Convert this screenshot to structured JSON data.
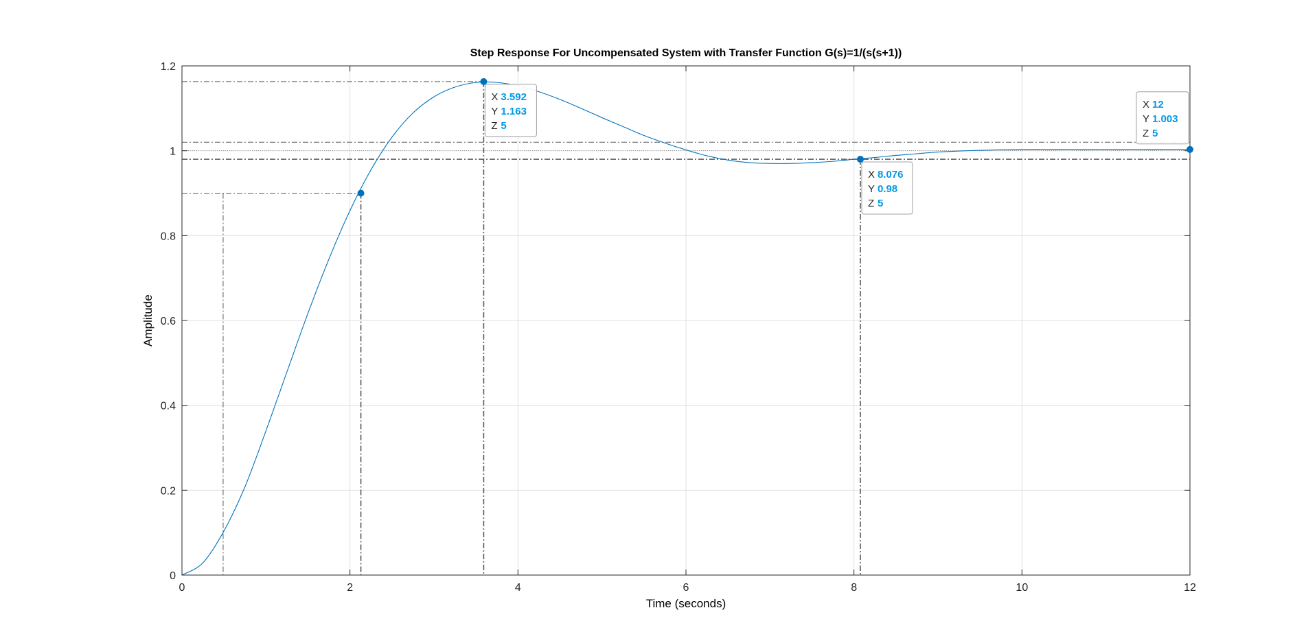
{
  "chart_data": {
    "type": "line",
    "title": "Step Response For Uncompensated System with Transfer Function G(s)=1/(s(s+1))",
    "xlabel": "Time (seconds)",
    "ylabel": "Amplitude",
    "xlim": [
      0,
      12
    ],
    "ylim": [
      0,
      1.2
    ],
    "xticks": [
      0,
      2,
      4,
      6,
      8,
      10,
      12
    ],
    "xtick_labels": [
      "0",
      "2",
      "4",
      "6",
      "8",
      "10",
      "12"
    ],
    "yticks": [
      0,
      0.2,
      0.4,
      0.6,
      0.8,
      1,
      1.2
    ],
    "ytick_labels": [
      "0",
      "0.2",
      "0.4",
      "0.6",
      "0.8",
      "1",
      "1.2"
    ],
    "grid": true,
    "series": [
      {
        "color": "#0072bd",
        "x": [
          0,
          0.25,
          0.5,
          0.75,
          1,
          1.25,
          1.5,
          1.75,
          2,
          2.25,
          2.5,
          2.75,
          3,
          3.25,
          3.5,
          3.75,
          4,
          4.25,
          4.5,
          4.75,
          5,
          5.25,
          5.5,
          5.75,
          6,
          6.25,
          6.5,
          6.75,
          7,
          7.25,
          7.5,
          7.75,
          8,
          8.25,
          8.5,
          8.75,
          9,
          9.5,
          10,
          10.5,
          11,
          11.5,
          12
        ],
        "y": [
          0,
          0.029,
          0.104,
          0.208,
          0.34,
          0.479,
          0.617,
          0.745,
          0.859,
          0.955,
          1.032,
          1.089,
          1.127,
          1.15,
          1.161,
          1.161,
          1.153,
          1.139,
          1.121,
          1.1,
          1.078,
          1.057,
          1.036,
          1.018,
          1.002,
          0.988,
          0.978,
          0.972,
          0.97,
          0.97,
          0.972,
          0.975,
          0.98,
          0.984,
          0.989,
          0.993,
          0.997,
          1.001,
          1.003,
          1.003,
          1.003,
          1.003,
          1.003
        ]
      }
    ],
    "settling_band": [
      0.98,
      1.02
    ],
    "rise_markers_y": [
      0.1,
      0.9
    ],
    "rise_markers_x": [
      0.49,
      2.13
    ],
    "peak": {
      "x": 3.592,
      "y": 1.163
    },
    "settling": {
      "x": 8.076,
      "y": 0.98
    },
    "steady_state": {
      "x": 12,
      "y": 1.003
    },
    "marker_points": [
      {
        "x": 2.13,
        "y": 0.9
      },
      {
        "x": 3.592,
        "y": 1.163
      },
      {
        "x": 8.076,
        "y": 0.98
      },
      {
        "x": 12,
        "y": 1.003
      }
    ],
    "datatips": [
      {
        "x": 3.592,
        "y": 1.163,
        "anchor": "below-right",
        "lines": [
          {
            "key": "X",
            "value": "3.592"
          },
          {
            "key": "Y",
            "value": "1.163"
          },
          {
            "key": "Z",
            "value": "5"
          }
        ]
      },
      {
        "x": 8.076,
        "y": 0.98,
        "anchor": "below-right",
        "lines": [
          {
            "key": "X",
            "value": "8.076"
          },
          {
            "key": "Y",
            "value": "0.98"
          },
          {
            "key": "Z",
            "value": "5"
          }
        ]
      },
      {
        "x": 12,
        "y": 1.003,
        "anchor": "above-left",
        "lines": [
          {
            "key": "X",
            "value": "12"
          },
          {
            "key": "Y",
            "value": "1.003"
          },
          {
            "key": "Z",
            "value": "5"
          }
        ]
      }
    ],
    "colors": {
      "line": "#0072bd",
      "tip_value": "#0099e6",
      "grid": "#dfdfdf",
      "axes": "#262626",
      "reference": "#595959"
    }
  }
}
